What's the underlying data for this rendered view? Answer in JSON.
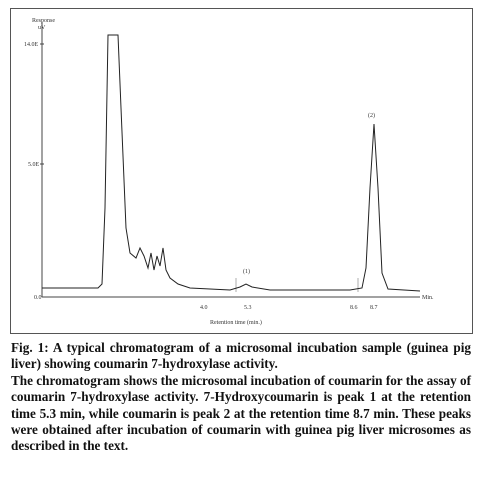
{
  "figure": {
    "y_axis_label": "Response",
    "y_axis_unit": "uV",
    "y_ticks": [
      "14.0E",
      "5.0E",
      "0.0"
    ],
    "x_ticks": [
      "4.0",
      "5.3",
      "8.6",
      "8.7"
    ],
    "x_axis_end": "Min.",
    "x_axis_label": "Retention time (min.)",
    "peaks": [
      "(1)",
      "(2)"
    ]
  },
  "caption": {
    "title": "Fig. 1: A typical chromatogram of a microsomal incubation sample (guinea pig liver) showing coumarin 7-hydroxylase activity.",
    "body": "The chromatogram shows the microsomal incubation of coumarin for the assay of coumarin 7-hydroxylase activity. 7-Hydroxycoumarin is peak 1 at the retention time 5.3 min, while coumarin is peak 2 at the retention time 8.7 min. These peaks were obtained after incubation of coumarin with guinea pig liver microsomes as described in the text."
  }
}
